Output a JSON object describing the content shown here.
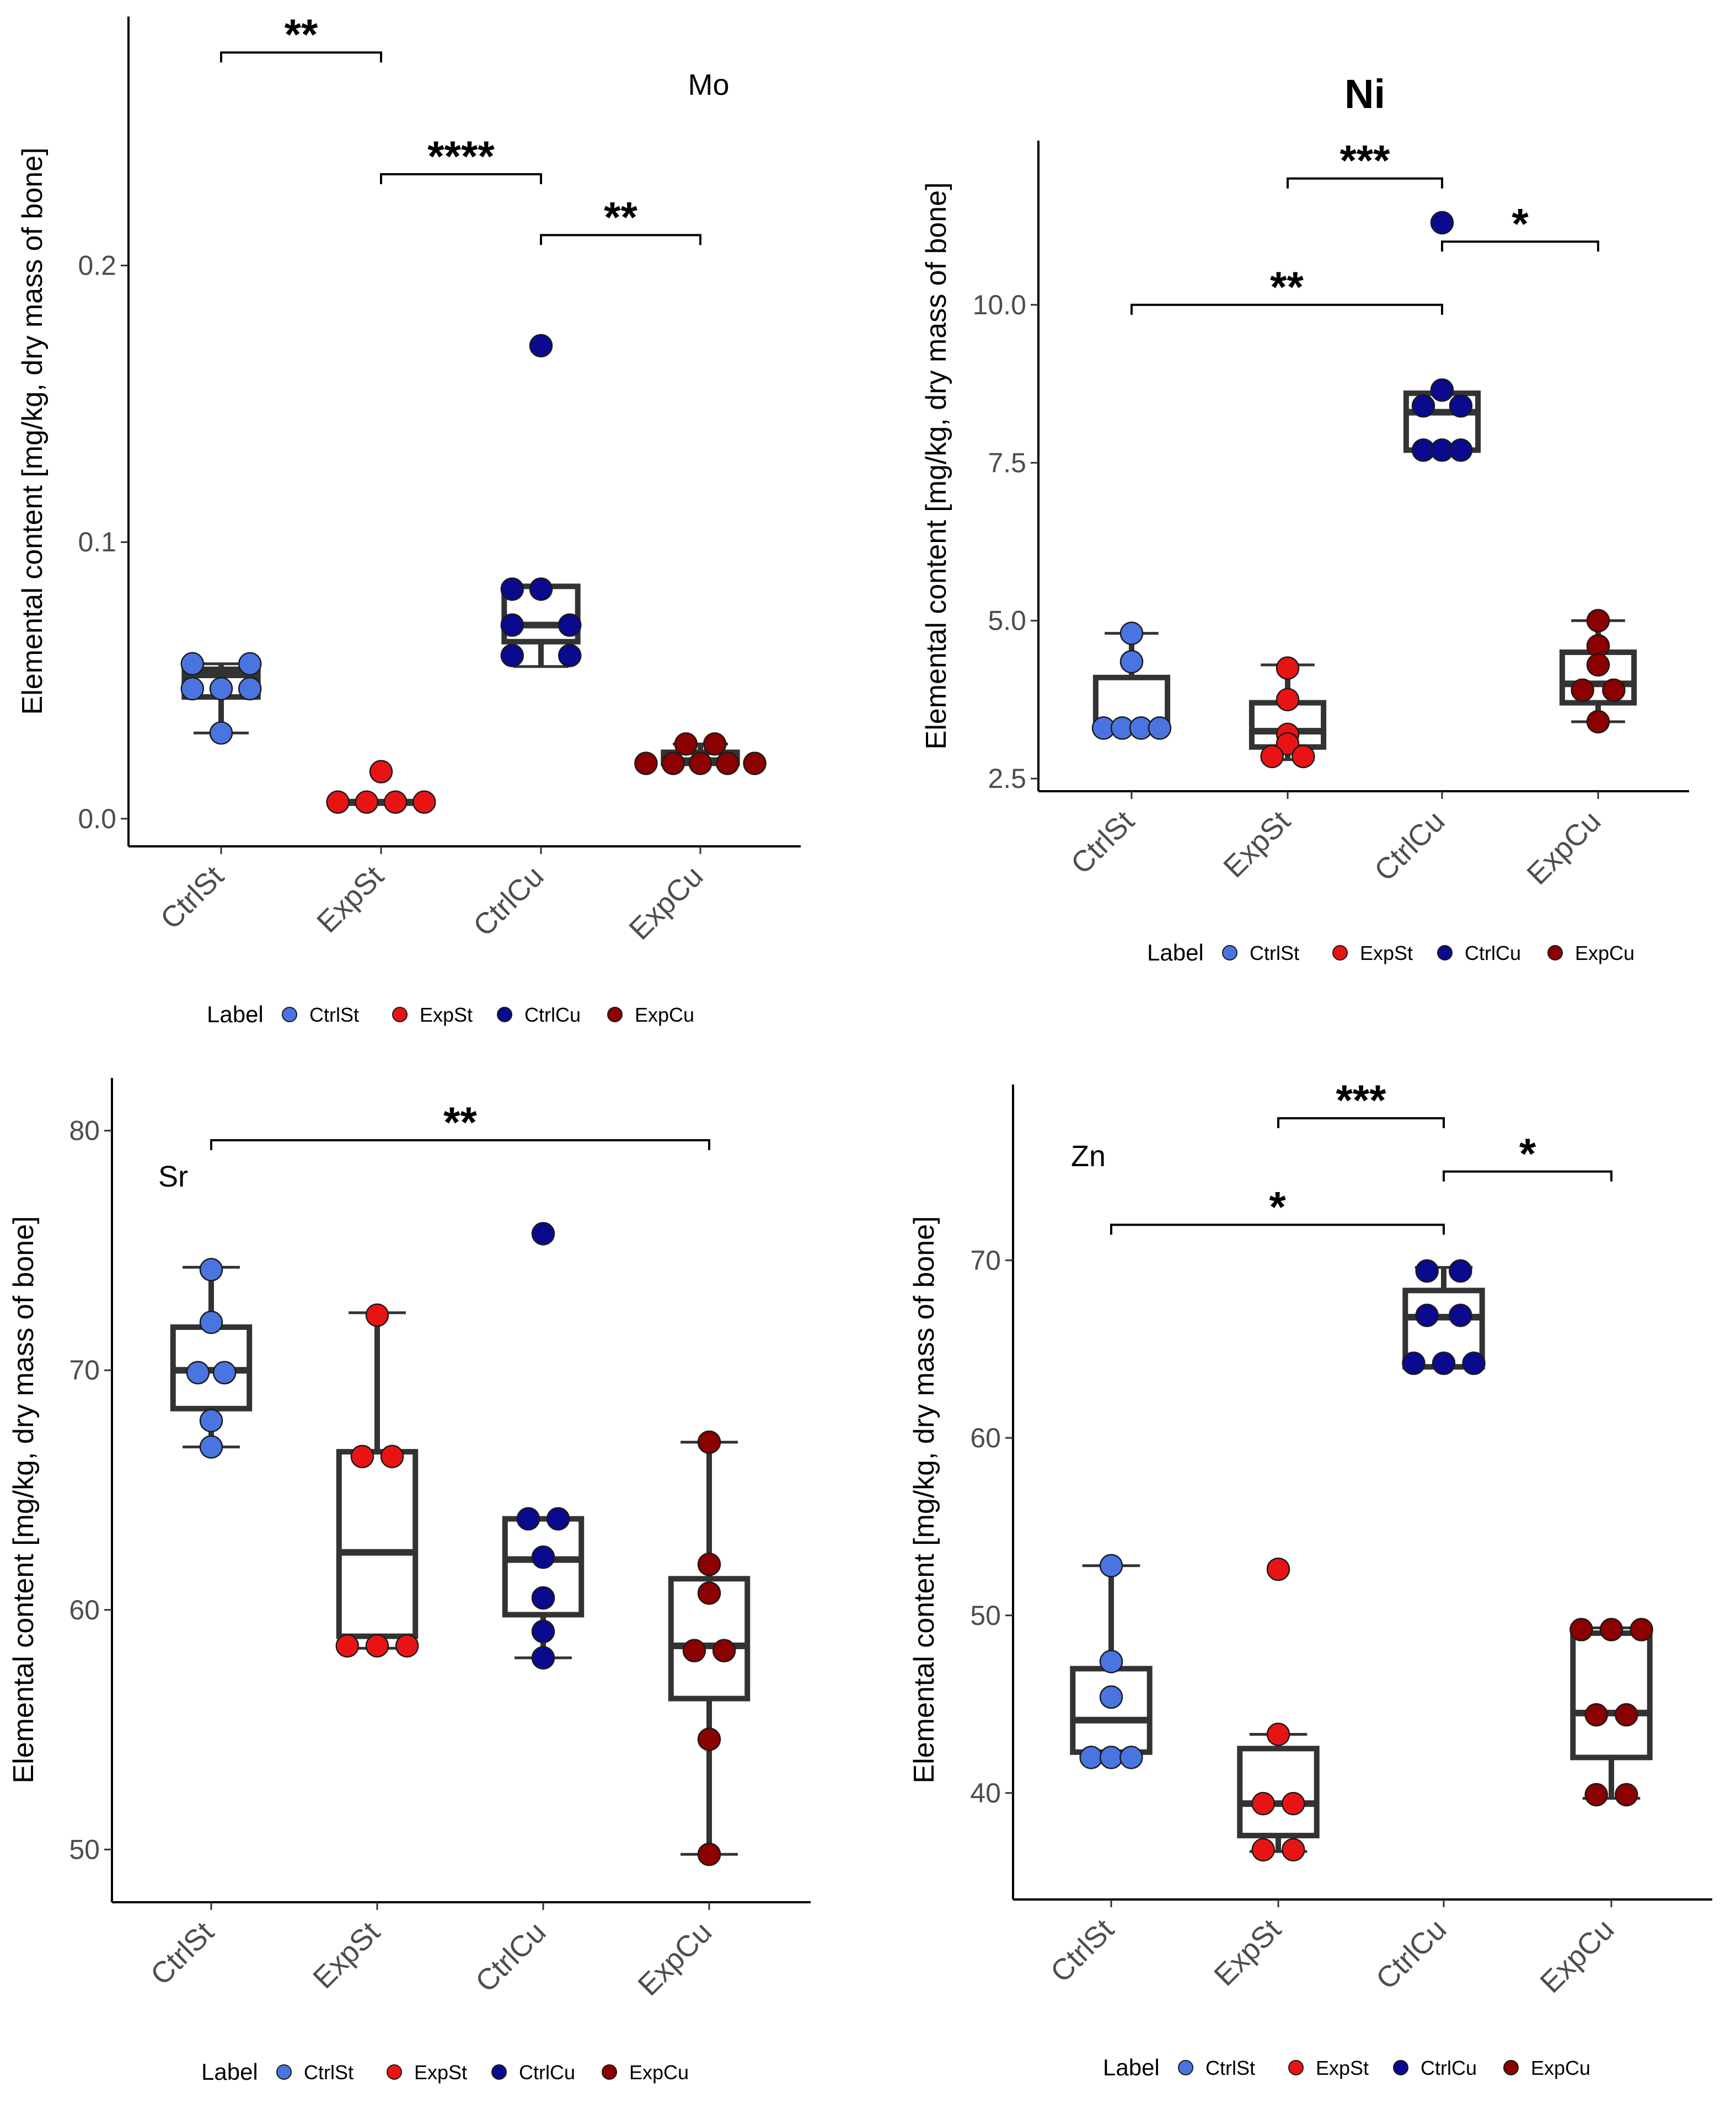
{
  "figure": {
    "legend_title": "Label",
    "colors": {
      "CtrlSt": "#4a74e0",
      "ExpSt": "#e81414",
      "CtrlCu": "#0a0a8e",
      "ExpCu": "#8b0000"
    },
    "legend_labels": [
      "CtrlSt",
      "ExpSt",
      "CtrlCu",
      "ExpCu"
    ]
  },
  "chart_data": [
    {
      "type": "box",
      "title": "Mo",
      "ylabel": "Elemental content [mg/kg, dry mass of bone]",
      "xlabel": "",
      "categories": [
        "CtrlSt",
        "ExpSt",
        "CtrlCu",
        "ExpCu"
      ],
      "ylim": [
        -0.01,
        0.29
      ],
      "yticks": [
        0.0,
        0.1,
        0.2
      ],
      "ytick_labels": [
        "0.0",
        "0.1",
        "0.2"
      ],
      "grid": false,
      "legend_position": "bottom",
      "boxes": [
        {
          "category": "CtrlSt",
          "min": 0.031,
          "q1": 0.044,
          "median": 0.052,
          "q3": 0.054,
          "max": 0.056
        },
        {
          "category": "ExpSt",
          "min": 0.006,
          "q1": 0.006,
          "median": 0.006,
          "q3": 0.006,
          "max": 0.006
        },
        {
          "category": "CtrlCu",
          "min": 0.055,
          "q1": 0.064,
          "median": 0.07,
          "q3": 0.084,
          "max": 0.084
        },
        {
          "category": "ExpCu",
          "min": 0.02,
          "q1": 0.02,
          "median": 0.021,
          "q3": 0.024,
          "max": 0.027
        }
      ],
      "points": [
        {
          "category": "CtrlSt",
          "offset": -0.18,
          "y": 0.056
        },
        {
          "category": "CtrlSt",
          "offset": 0.18,
          "y": 0.056
        },
        {
          "category": "CtrlSt",
          "offset": -0.18,
          "y": 0.047
        },
        {
          "category": "CtrlSt",
          "offset": 0.0,
          "y": 0.047
        },
        {
          "category": "CtrlSt",
          "offset": 0.18,
          "y": 0.047
        },
        {
          "category": "CtrlSt",
          "offset": 0.0,
          "y": 0.031
        },
        {
          "category": "ExpSt",
          "offset": 0.0,
          "y": 0.017
        },
        {
          "category": "ExpSt",
          "offset": -0.27,
          "y": 0.006
        },
        {
          "category": "ExpSt",
          "offset": -0.09,
          "y": 0.006
        },
        {
          "category": "ExpSt",
          "offset": 0.09,
          "y": 0.006
        },
        {
          "category": "ExpSt",
          "offset": 0.27,
          "y": 0.006
        },
        {
          "category": "CtrlCu",
          "offset": 0.0,
          "y": 0.171
        },
        {
          "category": "CtrlCu",
          "offset": -0.18,
          "y": 0.083
        },
        {
          "category": "CtrlCu",
          "offset": 0.0,
          "y": 0.083
        },
        {
          "category": "CtrlCu",
          "offset": -0.18,
          "y": 0.07
        },
        {
          "category": "CtrlCu",
          "offset": 0.18,
          "y": 0.07
        },
        {
          "category": "CtrlCu",
          "offset": -0.18,
          "y": 0.059
        },
        {
          "category": "CtrlCu",
          "offset": 0.18,
          "y": 0.059
        },
        {
          "category": "ExpCu",
          "offset": -0.09,
          "y": 0.027
        },
        {
          "category": "ExpCu",
          "offset": 0.09,
          "y": 0.027
        },
        {
          "category": "ExpCu",
          "offset": -0.34,
          "y": 0.02
        },
        {
          "category": "ExpCu",
          "offset": -0.17,
          "y": 0.02
        },
        {
          "category": "ExpCu",
          "offset": 0.0,
          "y": 0.02
        },
        {
          "category": "ExpCu",
          "offset": 0.17,
          "y": 0.02
        },
        {
          "category": "ExpCu",
          "offset": 0.34,
          "y": 0.02
        }
      ],
      "significance": [
        {
          "from": "CtrlSt",
          "to": "ExpSt",
          "y": 0.277,
          "label": "**"
        },
        {
          "from": "ExpSt",
          "to": "CtrlCu",
          "y": 0.233,
          "label": "****"
        },
        {
          "from": "CtrlCu",
          "to": "ExpCu",
          "y": 0.211,
          "label": "**"
        }
      ]
    },
    {
      "type": "box",
      "title": "Ni",
      "ylabel": "Elemental content [mg/kg, dry mass of bone]",
      "xlabel": "",
      "categories": [
        "CtrlSt",
        "ExpSt",
        "CtrlCu",
        "ExpCu"
      ],
      "ylim": [
        2.3,
        12.6
      ],
      "yticks": [
        2.5,
        5.0,
        7.5,
        10.0
      ],
      "ytick_labels": [
        "2.5",
        "5.0",
        "7.5",
        "10.0"
      ],
      "grid": false,
      "legend_position": "bottom",
      "boxes": [
        {
          "category": "CtrlSt",
          "min": 3.3,
          "q1": 3.3,
          "median": 3.3,
          "q3": 4.1,
          "max": 4.8
        },
        {
          "category": "ExpSt",
          "min": 2.8,
          "q1": 3.0,
          "median": 3.25,
          "q3": 3.7,
          "max": 4.3
        },
        {
          "category": "CtrlCu",
          "min": 7.7,
          "q1": 7.7,
          "median": 8.3,
          "q3": 8.6,
          "max": 8.6
        },
        {
          "category": "ExpCu",
          "min": 3.4,
          "q1": 3.7,
          "median": 4.0,
          "q3": 4.5,
          "max": 5.0
        }
      ],
      "points": [
        {
          "category": "CtrlSt",
          "offset": 0.0,
          "y": 4.8
        },
        {
          "category": "CtrlSt",
          "offset": 0.0,
          "y": 4.35
        },
        {
          "category": "CtrlSt",
          "offset": -0.18,
          "y": 3.3
        },
        {
          "category": "CtrlSt",
          "offset": -0.06,
          "y": 3.3
        },
        {
          "category": "CtrlSt",
          "offset": 0.06,
          "y": 3.3
        },
        {
          "category": "CtrlSt",
          "offset": 0.18,
          "y": 3.3
        },
        {
          "category": "ExpSt",
          "offset": 0.0,
          "y": 4.25
        },
        {
          "category": "ExpSt",
          "offset": 0.0,
          "y": 3.75
        },
        {
          "category": "ExpSt",
          "offset": 0.0,
          "y": 3.2
        },
        {
          "category": "ExpSt",
          "offset": 0.0,
          "y": 3.05
        },
        {
          "category": "ExpSt",
          "offset": -0.1,
          "y": 2.85
        },
        {
          "category": "ExpSt",
          "offset": 0.1,
          "y": 2.85
        },
        {
          "category": "CtrlCu",
          "offset": 0.0,
          "y": 11.3
        },
        {
          "category": "CtrlCu",
          "offset": 0.0,
          "y": 8.65
        },
        {
          "category": "CtrlCu",
          "offset": -0.12,
          "y": 8.4
        },
        {
          "category": "CtrlCu",
          "offset": 0.12,
          "y": 8.4
        },
        {
          "category": "CtrlCu",
          "offset": -0.12,
          "y": 7.7
        },
        {
          "category": "CtrlCu",
          "offset": 0.0,
          "y": 7.7
        },
        {
          "category": "CtrlCu",
          "offset": 0.12,
          "y": 7.7
        },
        {
          "category": "ExpCu",
          "offset": 0.0,
          "y": 5.0
        },
        {
          "category": "ExpCu",
          "offset": 0.0,
          "y": 4.6
        },
        {
          "category": "ExpCu",
          "offset": 0.0,
          "y": 4.3
        },
        {
          "category": "ExpCu",
          "offset": -0.1,
          "y": 3.9
        },
        {
          "category": "ExpCu",
          "offset": 0.1,
          "y": 3.9
        },
        {
          "category": "ExpCu",
          "offset": 0.0,
          "y": 3.4
        }
      ],
      "significance": [
        {
          "from": "ExpSt",
          "to": "CtrlCu",
          "y": 12.0,
          "label": "***"
        },
        {
          "from": "CtrlCu",
          "to": "ExpCu",
          "y": 11.0,
          "label": "*"
        },
        {
          "from": "CtrlSt",
          "to": "CtrlCu",
          "y": 10.0,
          "label": "**"
        }
      ]
    },
    {
      "type": "box",
      "title": "Sr",
      "ylabel": "Elemental content [mg/kg, dry mass of bone]",
      "xlabel": "",
      "categories": [
        "CtrlSt",
        "ExpSt",
        "CtrlCu",
        "ExpCu"
      ],
      "ylim": [
        47.8,
        82.2
      ],
      "yticks": [
        50,
        60,
        70,
        80
      ],
      "ytick_labels": [
        "50",
        "60",
        "70",
        "80"
      ],
      "grid": false,
      "legend_position": "bottom",
      "boxes": [
        {
          "category": "CtrlSt",
          "min": 66.8,
          "q1": 68.4,
          "median": 70.0,
          "q3": 71.8,
          "max": 74.3
        },
        {
          "category": "ExpSt",
          "min": 58.4,
          "q1": 58.9,
          "median": 62.4,
          "q3": 66.6,
          "max": 72.4
        },
        {
          "category": "CtrlCu",
          "min": 58.0,
          "q1": 59.8,
          "median": 62.1,
          "q3": 63.8,
          "max": 63.8
        },
        {
          "category": "ExpCu",
          "min": 49.8,
          "q1": 56.3,
          "median": 58.5,
          "q3": 61.3,
          "max": 67.0
        }
      ],
      "points": [
        {
          "category": "CtrlSt",
          "offset": 0.0,
          "y": 74.2
        },
        {
          "category": "CtrlSt",
          "offset": 0.0,
          "y": 72.0
        },
        {
          "category": "CtrlSt",
          "offset": -0.08,
          "y": 69.9
        },
        {
          "category": "CtrlSt",
          "offset": 0.08,
          "y": 69.9
        },
        {
          "category": "CtrlSt",
          "offset": 0.0,
          "y": 67.9
        },
        {
          "category": "CtrlSt",
          "offset": 0.0,
          "y": 66.8
        },
        {
          "category": "ExpSt",
          "offset": 0.0,
          "y": 72.3
        },
        {
          "category": "ExpSt",
          "offset": -0.09,
          "y": 66.4
        },
        {
          "category": "ExpSt",
          "offset": 0.09,
          "y": 66.4
        },
        {
          "category": "ExpSt",
          "offset": -0.18,
          "y": 58.5
        },
        {
          "category": "ExpSt",
          "offset": 0.0,
          "y": 58.5
        },
        {
          "category": "ExpSt",
          "offset": 0.18,
          "y": 58.5
        },
        {
          "category": "CtrlCu",
          "offset": 0.0,
          "y": 75.7
        },
        {
          "category": "CtrlCu",
          "offset": -0.09,
          "y": 63.8
        },
        {
          "category": "CtrlCu",
          "offset": 0.09,
          "y": 63.8
        },
        {
          "category": "CtrlCu",
          "offset": 0.0,
          "y": 62.2
        },
        {
          "category": "CtrlCu",
          "offset": 0.0,
          "y": 60.5
        },
        {
          "category": "CtrlCu",
          "offset": 0.0,
          "y": 59.1
        },
        {
          "category": "CtrlCu",
          "offset": 0.0,
          "y": 58.0
        },
        {
          "category": "ExpCu",
          "offset": 0.0,
          "y": 67.0
        },
        {
          "category": "ExpCu",
          "offset": 0.0,
          "y": 61.9
        },
        {
          "category": "ExpCu",
          "offset": 0.0,
          "y": 60.7
        },
        {
          "category": "ExpCu",
          "offset": -0.09,
          "y": 58.3
        },
        {
          "category": "ExpCu",
          "offset": 0.09,
          "y": 58.3
        },
        {
          "category": "ExpCu",
          "offset": 0.0,
          "y": 54.6
        },
        {
          "category": "ExpCu",
          "offset": 0.0,
          "y": 49.8
        }
      ],
      "significance": [
        {
          "from": "CtrlSt",
          "to": "ExpCu",
          "y": 79.6,
          "label": "**"
        }
      ]
    },
    {
      "type": "box",
      "title": "Zn",
      "ylabel": "Elemental content [mg/kg, dry mass of bone]",
      "xlabel": "",
      "categories": [
        "CtrlSt",
        "ExpSt",
        "CtrlCu",
        "ExpCu"
      ],
      "ylim": [
        34.0,
        79.9
      ],
      "yticks": [
        40,
        50,
        60,
        70
      ],
      "ytick_labels": [
        "40",
        "50",
        "60",
        "70"
      ],
      "grid": false,
      "legend_position": "bottom",
      "boxes": [
        {
          "category": "CtrlSt",
          "min": 42.0,
          "q1": 42.3,
          "median": 44.1,
          "q3": 47.0,
          "max": 52.8
        },
        {
          "category": "ExpSt",
          "min": 36.7,
          "q1": 37.6,
          "median": 39.4,
          "q3": 42.5,
          "max": 43.3
        },
        {
          "category": "CtrlCu",
          "min": 64.0,
          "q1": 64.0,
          "median": 66.8,
          "q3": 68.3,
          "max": 69.6
        },
        {
          "category": "ExpCu",
          "min": 39.7,
          "q1": 42.0,
          "median": 44.5,
          "q3": 49.0,
          "max": 49.3
        }
      ],
      "points": [
        {
          "category": "CtrlSt",
          "offset": 0.0,
          "y": 52.8
        },
        {
          "category": "CtrlSt",
          "offset": 0.0,
          "y": 47.4
        },
        {
          "category": "CtrlSt",
          "offset": 0.0,
          "y": 45.4
        },
        {
          "category": "CtrlSt",
          "offset": -0.12,
          "y": 42.0
        },
        {
          "category": "CtrlSt",
          "offset": 0.0,
          "y": 42.0
        },
        {
          "category": "CtrlSt",
          "offset": 0.12,
          "y": 42.0
        },
        {
          "category": "ExpSt",
          "offset": 0.0,
          "y": 52.6
        },
        {
          "category": "ExpSt",
          "offset": 0.0,
          "y": 43.3
        },
        {
          "category": "ExpSt",
          "offset": -0.09,
          "y": 39.4
        },
        {
          "category": "ExpSt",
          "offset": 0.09,
          "y": 39.4
        },
        {
          "category": "ExpSt",
          "offset": -0.09,
          "y": 36.8
        },
        {
          "category": "ExpSt",
          "offset": 0.09,
          "y": 36.8
        },
        {
          "category": "CtrlCu",
          "offset": -0.1,
          "y": 69.4
        },
        {
          "category": "CtrlCu",
          "offset": 0.1,
          "y": 69.4
        },
        {
          "category": "CtrlCu",
          "offset": -0.1,
          "y": 66.9
        },
        {
          "category": "CtrlCu",
          "offset": 0.1,
          "y": 66.9
        },
        {
          "category": "CtrlCu",
          "offset": -0.18,
          "y": 64.2
        },
        {
          "category": "CtrlCu",
          "offset": 0.0,
          "y": 64.2
        },
        {
          "category": "CtrlCu",
          "offset": 0.18,
          "y": 64.2
        },
        {
          "category": "ExpCu",
          "offset": -0.18,
          "y": 49.2
        },
        {
          "category": "ExpCu",
          "offset": 0.0,
          "y": 49.2
        },
        {
          "category": "ExpCu",
          "offset": 0.18,
          "y": 49.2
        },
        {
          "category": "ExpCu",
          "offset": -0.09,
          "y": 44.4
        },
        {
          "category": "ExpCu",
          "offset": 0.09,
          "y": 44.4
        },
        {
          "category": "ExpCu",
          "offset": -0.09,
          "y": 39.9
        },
        {
          "category": "ExpCu",
          "offset": 0.09,
          "y": 39.9
        }
      ],
      "significance": [
        {
          "from": "ExpSt",
          "to": "CtrlCu",
          "y": 78.0,
          "label": "***"
        },
        {
          "from": "CtrlCu",
          "to": "ExpCu",
          "y": 75.0,
          "label": "*"
        },
        {
          "from": "CtrlSt",
          "to": "CtrlCu",
          "y": 72.0,
          "label": "*"
        }
      ]
    }
  ]
}
